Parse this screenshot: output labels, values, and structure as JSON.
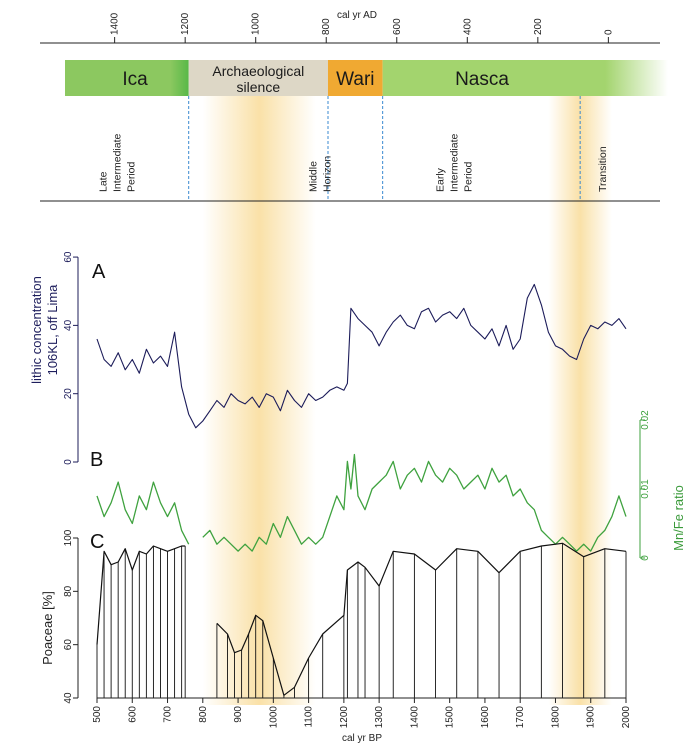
{
  "top_axis": {
    "title": "cal yr AD",
    "ticks": [
      1400,
      1200,
      1000,
      800,
      600,
      400,
      200,
      0
    ]
  },
  "bottom_axis": {
    "title": "cal yr BP",
    "ticks": [
      500,
      600,
      700,
      800,
      900,
      1000,
      1100,
      1200,
      1300,
      1400,
      1500,
      1600,
      1700,
      1800,
      1900,
      2000
    ]
  },
  "eras": [
    {
      "label": "Ica",
      "from_bp": 500,
      "to_bp": 760,
      "color": "#8cc860"
    },
    {
      "label": "Archaeological silence",
      "line1": "Archaeological",
      "line2": "silence",
      "from_bp": 760,
      "to_bp": 1155,
      "color": "#ddd7c6"
    },
    {
      "label": "Wari",
      "from_bp": 1155,
      "to_bp": 1310,
      "color": "#f0a932"
    },
    {
      "label": "Nasca",
      "from_bp": 1310,
      "to_bp": 2000,
      "color": "#a3d46e"
    }
  ],
  "periods": [
    {
      "lines": [
        "Late",
        "Intermediate",
        "Period"
      ],
      "at_bp": 590
    },
    {
      "lines": [
        "Middle",
        "Horizon"
      ],
      "at_bp": 1185
    },
    {
      "lines": [
        "Early",
        "Intermediate",
        "Period"
      ],
      "at_bp": 1545
    },
    {
      "lines": [
        "Transition"
      ],
      "at_bp": 2005
    }
  ],
  "period_boundaries_bp": [
    760,
    1155,
    1310,
    1870
  ],
  "highlight_bands": [
    {
      "from_bp": 800,
      "to_bp": 1120,
      "color": "#f5c860"
    },
    {
      "from_bp": 1780,
      "to_bp": 1960,
      "color": "#f5c860"
    }
  ],
  "chart_data": [
    {
      "type": "line",
      "panel": "A",
      "ylabel_line1": "lithic concentration",
      "ylabel_line2": "106KL, off Lima",
      "ylim": [
        0,
        65
      ],
      "yticks": [
        0,
        20,
        40,
        60
      ],
      "series": [
        {
          "color": "#1c1c5a",
          "x": [
            500,
            520,
            540,
            560,
            580,
            600,
            620,
            640,
            660,
            680,
            700,
            720,
            740,
            760,
            780,
            800,
            820,
            840,
            860,
            880,
            900,
            920,
            940,
            960,
            980,
            1000,
            1020,
            1040,
            1060,
            1080,
            1100,
            1120,
            1140,
            1160,
            1180,
            1200,
            1210,
            1220,
            1240,
            1260,
            1280,
            1300,
            1320,
            1340,
            1360,
            1380,
            1400,
            1420,
            1440,
            1460,
            1480,
            1500,
            1520,
            1540,
            1560,
            1580,
            1600,
            1620,
            1640,
            1660,
            1680,
            1700,
            1720,
            1740,
            1760,
            1780,
            1800,
            1820,
            1840,
            1860,
            1880,
            1900,
            1920,
            1940,
            1960,
            1980,
            2000
          ],
          "y": [
            36,
            30,
            28,
            32,
            27,
            30,
            26,
            33,
            29,
            31,
            28,
            38,
            22,
            14,
            10,
            12,
            15,
            18,
            16,
            20,
            18,
            17,
            19,
            16,
            20,
            19,
            15,
            21,
            18,
            16,
            20,
            18,
            19,
            21,
            22,
            21,
            23,
            45,
            42,
            40,
            38,
            34,
            38,
            41,
            43,
            40,
            39,
            44,
            45,
            41,
            43,
            44,
            42,
            45,
            40,
            38,
            36,
            39,
            34,
            40,
            33,
            36,
            48,
            52,
            46,
            38,
            34,
            33,
            31,
            30,
            36,
            40,
            39,
            41,
            40,
            42,
            39
          ]
        }
      ]
    },
    {
      "type": "line",
      "panel": "B",
      "ylabel": "Mn/Fe ratio",
      "ylim": [
        0,
        0.02
      ],
      "yticks": [
        0,
        0.01,
        0.02
      ],
      "ytick_labels": [
        "0",
        "0.01",
        "0.02"
      ],
      "series": [
        {
          "color": "#3fa23f",
          "x": [
            500,
            520,
            540,
            560,
            580,
            600,
            620,
            640,
            660,
            680,
            700,
            720,
            740,
            760
          ],
          "y": [
            0.009,
            0.006,
            0.008,
            0.011,
            0.007,
            0.005,
            0.009,
            0.007,
            0.011,
            0.008,
            0.006,
            0.008,
            0.004,
            0.002
          ]
        },
        {
          "color": "#3fa23f",
          "x": [
            800,
            820,
            840,
            860,
            880,
            900,
            920,
            940,
            960,
            980,
            1000,
            1020,
            1040,
            1060,
            1080,
            1100,
            1120,
            1140,
            1160,
            1180,
            1200,
            1210,
            1220,
            1230,
            1240,
            1260,
            1280,
            1300,
            1320,
            1340,
            1360,
            1380,
            1400,
            1420,
            1440,
            1460,
            1480,
            1500,
            1520,
            1540,
            1560,
            1580,
            1600,
            1620,
            1640,
            1660,
            1680,
            1700,
            1720,
            1740,
            1760,
            1780,
            1800,
            1820,
            1840,
            1860,
            1880,
            1900,
            1920,
            1940,
            1960,
            1980,
            2000
          ],
          "y": [
            0.003,
            0.004,
            0.002,
            0.003,
            0.002,
            0.001,
            0.002,
            0.001,
            0.003,
            0.002,
            0.005,
            0.003,
            0.006,
            0.004,
            0.002,
            0.003,
            0.002,
            0.003,
            0.006,
            0.009,
            0.007,
            0.014,
            0.01,
            0.015,
            0.009,
            0.007,
            0.01,
            0.011,
            0.012,
            0.014,
            0.01,
            0.012,
            0.013,
            0.011,
            0.014,
            0.012,
            0.011,
            0.013,
            0.012,
            0.01,
            0.011,
            0.012,
            0.01,
            0.013,
            0.011,
            0.012,
            0.009,
            0.01,
            0.008,
            0.007,
            0.004,
            0.003,
            0.002,
            0.003,
            0.002,
            0.001,
            0.002,
            0.001,
            0.003,
            0.004,
            0.006,
            0.009,
            0.006
          ]
        }
      ]
    },
    {
      "type": "line",
      "panel": "C",
      "ylabel": "Poaceae [%]",
      "ylim": [
        40,
        100
      ],
      "yticks": [
        40,
        60,
        80,
        100
      ],
      "series": [
        {
          "color": "#111111",
          "x": [
            500,
            520,
            540,
            560,
            580,
            600,
            620,
            640,
            660,
            680,
            700,
            720,
            740,
            750
          ],
          "y": [
            60,
            95,
            90,
            91,
            96,
            88,
            95,
            94,
            97,
            96,
            95,
            96,
            97,
            97
          ]
        },
        {
          "color": "#111111",
          "x": [
            840,
            870,
            890,
            910,
            930,
            950,
            970,
            1000,
            1030,
            1060,
            1100,
            1140,
            1200,
            1210,
            1240,
            1260,
            1300,
            1340,
            1400,
            1460,
            1520,
            1580,
            1640,
            1700,
            1760,
            1820,
            1880,
            1940,
            2000
          ],
          "y": [
            68,
            64,
            57,
            58,
            64,
            71,
            69,
            55,
            41,
            44,
            55,
            64,
            71,
            88,
            91,
            89,
            82,
            95,
            94,
            88,
            96,
            95,
            87,
            95,
            97,
            98,
            93,
            96,
            95
          ]
        }
      ]
    }
  ]
}
